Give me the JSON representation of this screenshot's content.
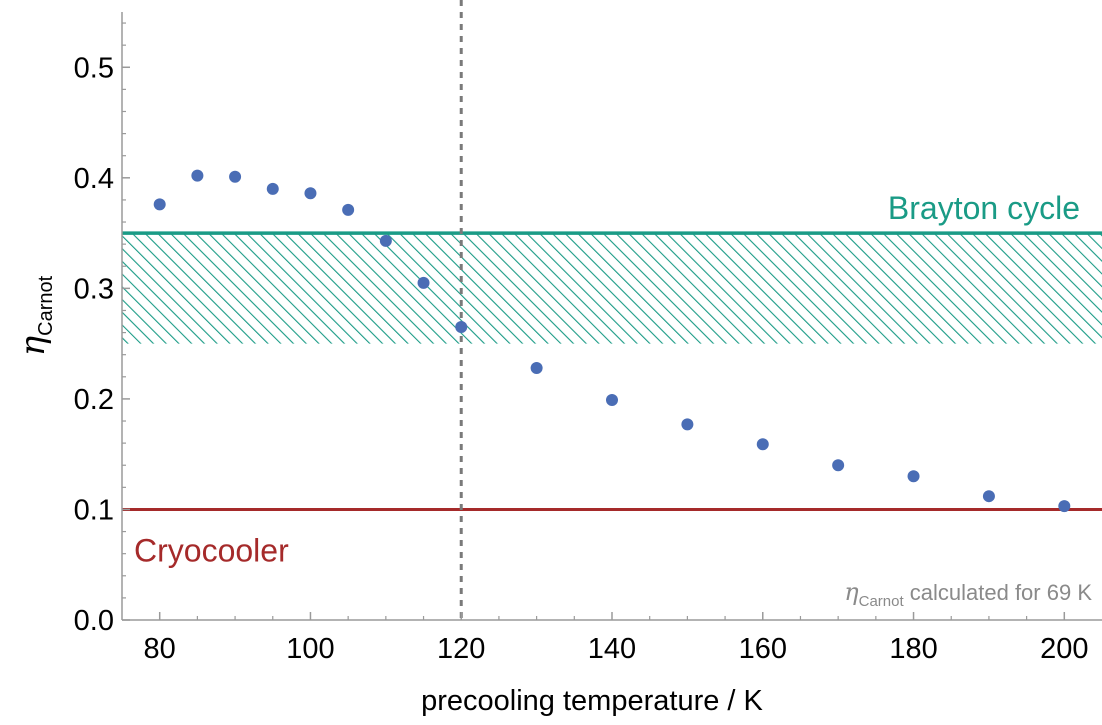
{
  "chart_data": {
    "type": "scatter",
    "xlabel": "precooling temperature / K",
    "ylabel_symbol": "η",
    "ylabel_subscript": "Carnot",
    "xlim": [
      75,
      205
    ],
    "ylim": [
      0.0,
      0.55
    ],
    "x_ticks": [
      "80",
      "100",
      "120",
      "140",
      "160",
      "180",
      "200"
    ],
    "y_ticks": [
      "0.0",
      "0.1",
      "0.2",
      "0.3",
      "0.4",
      "0.5"
    ],
    "x_tick_values": [
      80,
      100,
      120,
      140,
      160,
      180,
      200
    ],
    "y_tick_values": [
      0.0,
      0.1,
      0.2,
      0.3,
      0.4,
      0.5
    ],
    "series": [
      {
        "x": [
          80,
          85,
          90,
          95,
          100,
          105,
          110,
          115,
          120,
          130,
          140,
          150,
          160,
          170,
          180,
          190,
          200
        ],
        "y": [
          0.376,
          0.402,
          0.401,
          0.39,
          0.386,
          0.371,
          0.343,
          0.305,
          0.265,
          0.228,
          0.199,
          0.177,
          0.159,
          0.14,
          0.13,
          0.112,
          0.103
        ],
        "color": "#4a6db5"
      }
    ],
    "bands": {
      "brayton": {
        "label": "Brayton cycle",
        "y_range": [
          0.25,
          0.35
        ],
        "color": "#1a9b86"
      },
      "cryocooler": {
        "label": "Cryocooler",
        "y": 0.1,
        "color": "#a52a2a"
      }
    },
    "vline": {
      "x": 120,
      "color": "#7a7a7a"
    },
    "annotation": {
      "symbol": "η",
      "subscript": "Carnot",
      "text": " calculated for 69 K"
    },
    "grid": false
  }
}
